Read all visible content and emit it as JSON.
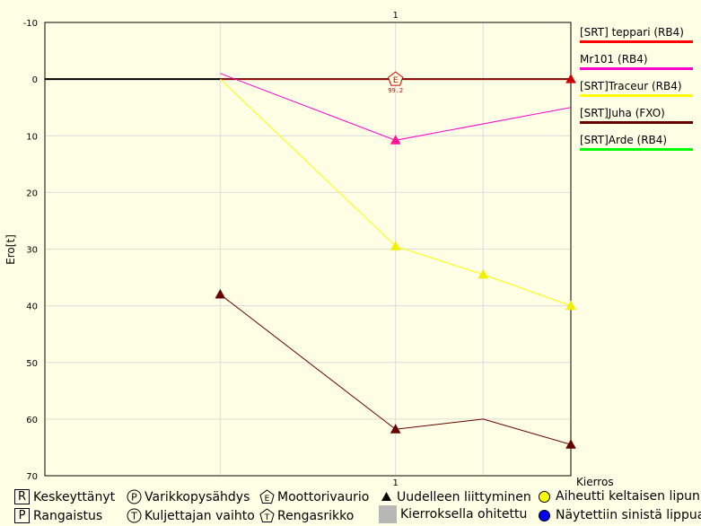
{
  "chart_data": {
    "type": "line",
    "xlabel": "Kierros",
    "ylabel": "Ero[t]",
    "xlim": [
      -1,
      2
    ],
    "ylim": [
      -10,
      70
    ],
    "y_inverted": true,
    "x_ticks": [
      "1"
    ],
    "top_x_tick": "1",
    "y_ticks": [
      "-10",
      "0",
      "10",
      "20",
      "30",
      "40",
      "50",
      "60",
      "70"
    ],
    "grid": true,
    "legend_position": "right",
    "series": [
      {
        "name": "[SRT] teppari (RB4)",
        "color": "#ff0000",
        "x": [
          0,
          1,
          2
        ],
        "y": [
          0,
          0,
          0
        ],
        "markers": [
          1,
          2
        ],
        "marker_color": "#cc0000"
      },
      {
        "name": "Mr101 (RB4)",
        "color": "#ff00cc",
        "x": [
          0,
          1,
          2
        ],
        "y": [
          -1,
          10.8,
          5
        ],
        "markers": [
          1
        ],
        "marker_color": "#ff1493"
      },
      {
        "name": "[SRT]Traceur (RB4)",
        "color": "#ffff00",
        "x": [
          0,
          1,
          1.5,
          2
        ],
        "y": [
          0,
          29.5,
          34.5,
          40
        ],
        "markers": [
          1,
          2,
          3
        ],
        "marker_color": "#f0f000"
      },
      {
        "name": "[SRT]Juha (FXO)",
        "color": "#660000",
        "x": [
          0,
          1,
          1.5,
          2
        ],
        "y": [
          38,
          61.8,
          60,
          64.5
        ],
        "markers": [
          0,
          1,
          3
        ],
        "marker_color": "#660000"
      },
      {
        "name": "[SRT]Arde (RB4)",
        "color": "#00ff00",
        "x": [],
        "y": [],
        "markers": [],
        "marker_color": "#00ff00"
      }
    ],
    "annotations": [
      {
        "type": "engine_failure",
        "symbol": "E",
        "x": 1,
        "y": 0,
        "label": "99.2",
        "color": "#cc0000"
      }
    ]
  },
  "key": {
    "retired": {
      "symbol": "R",
      "label": "Keskeyttänyt"
    },
    "penalty": {
      "symbol": "P",
      "label": "Rangaistus"
    },
    "pit_refuel": {
      "symbol": "P",
      "label": "Varikkopysähdys"
    },
    "driver_change": {
      "symbol": "T",
      "label": "Kuljettajan vaihto"
    },
    "engine_failure": {
      "symbol": "E",
      "label": "Moottorivaurio"
    },
    "tyre_failure": {
      "symbol": "T",
      "label": "Rengasrikko"
    },
    "rejoin": {
      "label": "Uudelleen liittyminen"
    },
    "lapped": {
      "label": "Kierroksella ohitettu"
    },
    "yellow_flag": {
      "label": "Aiheutti keltaisen lipun",
      "color": "#ffff00"
    },
    "blue_flag": {
      "label": "Näytettiin sinistä lippua",
      "color": "#0000ff"
    }
  }
}
